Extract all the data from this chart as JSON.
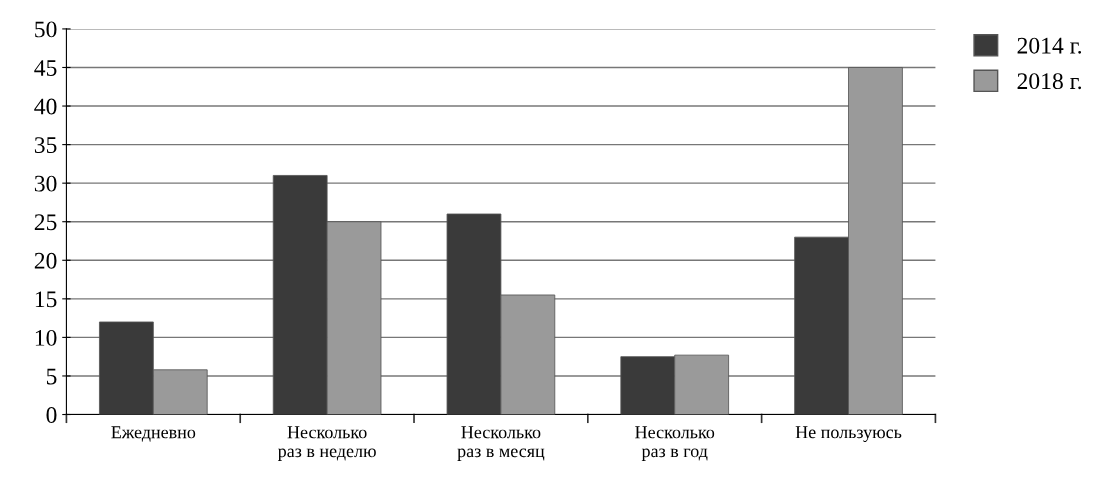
{
  "chart_data": {
    "type": "bar",
    "categories": [
      "Ежедневно",
      "Несколько\nраз в неделю",
      "Несколько\nраз в месяц",
      "Несколько\nраз в год",
      "Не пользуюсь"
    ],
    "series": [
      {
        "name": "2014 г.",
        "color": "#3a3a3a",
        "values": [
          12,
          31,
          26,
          7.5,
          23
        ]
      },
      {
        "name": "2018 г.",
        "color": "#9a9a9a",
        "values": [
          5.8,
          25,
          15.5,
          7.7,
          45
        ]
      }
    ],
    "ylim": [
      0,
      50
    ],
    "yticks": [
      0,
      5,
      10,
      15,
      20,
      25,
      30,
      35,
      40,
      45,
      50
    ],
    "grid": "y",
    "legend": "top right"
  }
}
